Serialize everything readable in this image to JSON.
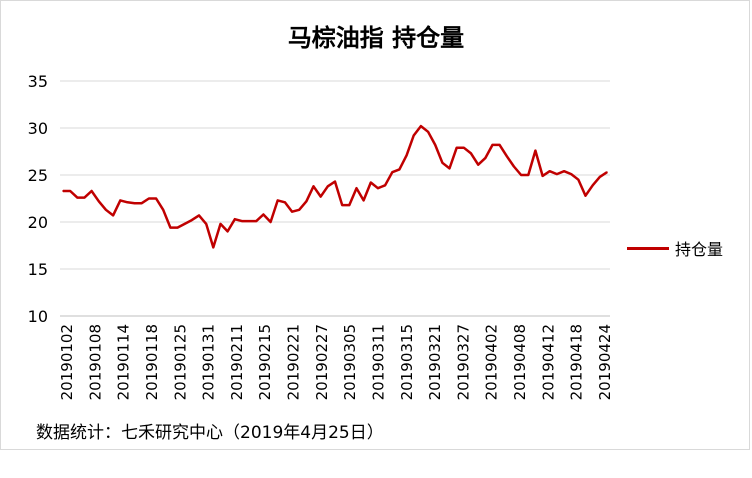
{
  "chart_data": {
    "type": "line",
    "title": "马棕油指 持仓量",
    "series": [
      {
        "name": "持仓量",
        "color": "#c00000",
        "values": [
          23.3,
          23.3,
          22.6,
          22.6,
          23.3,
          22.2,
          21.3,
          20.7,
          22.3,
          22.1,
          22.0,
          22.0,
          22.5,
          22.5,
          21.3,
          19.4,
          19.4,
          19.8,
          20.2,
          20.7,
          19.8,
          17.3,
          19.8,
          19.0,
          20.3,
          20.1,
          20.1,
          20.1,
          20.8,
          20.0,
          22.3,
          22.1,
          21.1,
          21.3,
          22.2,
          23.8,
          22.7,
          23.8,
          24.3,
          21.8,
          21.8,
          23.6,
          22.3,
          24.2,
          23.6,
          23.9,
          25.3,
          25.6,
          27.1,
          29.2,
          30.2,
          29.6,
          28.2,
          26.3,
          25.7,
          27.9,
          27.9,
          27.3,
          26.1,
          26.8,
          28.2,
          28.2,
          27.0,
          25.9,
          25.0,
          25.0,
          27.6,
          24.9,
          25.4,
          25.1,
          25.4,
          25.1,
          24.5,
          22.8,
          23.9,
          24.8,
          25.3
        ]
      }
    ],
    "x_tick_labels": [
      "20190102",
      "20190108",
      "20190114",
      "20190118",
      "20190125",
      "20190131",
      "20190211",
      "20190215",
      "20190221",
      "20190227",
      "20190305",
      "20190311",
      "20190315",
      "20190321",
      "20190327",
      "20190402",
      "20190408",
      "20190412",
      "20190418",
      "20190424"
    ],
    "y_ticks": [
      10,
      15,
      20,
      25,
      30,
      35
    ],
    "ylim": [
      10,
      35
    ],
    "grid": "horizontal",
    "legend_position": "right"
  },
  "footer": {
    "source": "数据统计：七禾研究中心（2019年4月25日）"
  }
}
